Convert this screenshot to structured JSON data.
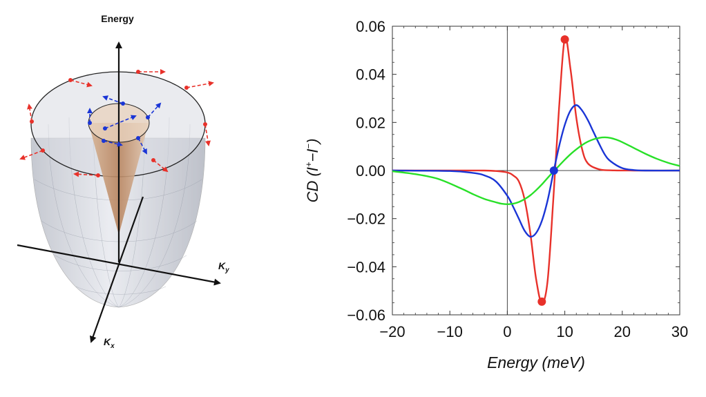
{
  "diagram": {
    "energy_label": "Energy",
    "ky_label": "K",
    "ky_sub": "y",
    "kx_label": "K",
    "kx_sub": "x",
    "colors": {
      "outer_cone": "#c9ccd4",
      "inner_cone": "#c49a78",
      "outer_arrows": "#e8312a",
      "inner_arrows": "#1a35d6"
    }
  },
  "chart_data": {
    "type": "line",
    "xlabel": "Energy (meV)",
    "ylabel": "CD (I+−I−)",
    "ylabel_parts": {
      "main": "CD (",
      "i1": "I",
      "sup1": "+",
      "minus": "−",
      "i2": "I",
      "sup2": "−",
      "close": ")"
    },
    "xlim": [
      -20,
      30
    ],
    "ylim": [
      -0.06,
      0.06
    ],
    "xticks": [
      -20,
      -10,
      0,
      10,
      20,
      30
    ],
    "yticks": [
      -0.06,
      -0.04,
      -0.02,
      0.0,
      0.02,
      0.04,
      0.06
    ],
    "xtick_labels": [
      "−20",
      "−10",
      "0",
      "10",
      "20",
      "30"
    ],
    "ytick_labels": [
      "−0.06",
      "−0.04",
      "−0.02",
      "0.00",
      "0.02",
      "0.04",
      "0.06"
    ],
    "grid": false,
    "series": [
      {
        "color": "#e8312a",
        "x": [
          -20,
          -8,
          -4,
          -2,
          0,
          1,
          2,
          3,
          4,
          5,
          6,
          7,
          8,
          9,
          10,
          11,
          12,
          13,
          14,
          16,
          18,
          22,
          30
        ],
        "y": [
          0,
          0,
          0,
          -0.0002,
          -0.0008,
          -0.002,
          -0.0045,
          -0.012,
          -0.026,
          -0.045,
          -0.055,
          -0.046,
          -0.012,
          0.026,
          0.055,
          0.042,
          0.022,
          0.009,
          0.003,
          0.0005,
          0.0001,
          0,
          0
        ]
      },
      {
        "color": "#1a35d6",
        "x": [
          -20,
          -10,
          -6,
          -4,
          -2,
          0,
          1,
          2,
          3,
          4,
          5,
          6,
          7,
          8,
          9,
          10,
          11,
          12,
          13,
          14,
          15,
          16,
          17,
          18,
          20,
          22,
          24,
          30
        ],
        "y": [
          0,
          -0.0002,
          -0.001,
          -0.002,
          -0.0045,
          -0.0105,
          -0.015,
          -0.02,
          -0.025,
          -0.0275,
          -0.026,
          -0.021,
          -0.0125,
          -0.001,
          0.01,
          0.019,
          0.025,
          0.0272,
          0.025,
          0.021,
          0.016,
          0.011,
          0.0065,
          0.0038,
          0.001,
          0.0002,
          0,
          0
        ]
      },
      {
        "color": "#28e028",
        "x": [
          -20,
          -16,
          -12,
          -8,
          -6,
          -4,
          -2,
          -1,
          0,
          1,
          2,
          3,
          4,
          5,
          6,
          7,
          8,
          9,
          10,
          11,
          12,
          13,
          14,
          15,
          16,
          17,
          18,
          19,
          20,
          22,
          24,
          26,
          28,
          30
        ],
        "y": [
          -0.0003,
          -0.0015,
          -0.0035,
          -0.0075,
          -0.0098,
          -0.0118,
          -0.0132,
          -0.0138,
          -0.014,
          -0.0138,
          -0.0131,
          -0.0119,
          -0.0103,
          -0.0082,
          -0.0058,
          -0.0031,
          -0.0005,
          0.002,
          0.0045,
          0.0068,
          0.0088,
          0.0106,
          0.012,
          0.013,
          0.0136,
          0.0138,
          0.0135,
          0.0128,
          0.0118,
          0.0094,
          0.007,
          0.0049,
          0.0032,
          0.0019
        ]
      }
    ],
    "markers": [
      {
        "x": 10,
        "y": 0.0545,
        "color": "#e8312a"
      },
      {
        "x": 6,
        "y": -0.0545,
        "color": "#e8312a"
      },
      {
        "x": 8.1,
        "y": 0,
        "color": "#1a35d6"
      }
    ]
  }
}
